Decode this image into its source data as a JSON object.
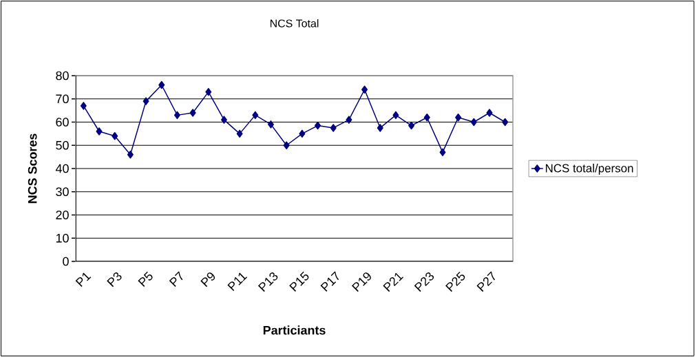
{
  "chart_data": {
    "type": "line",
    "title": "NCS Total",
    "xlabel": "Particiants",
    "ylabel": "NCS Scores",
    "categories": [
      "P1",
      null,
      "P3",
      null,
      "P5",
      null,
      "P7",
      null,
      "P9",
      null,
      "P11",
      null,
      "P13",
      null,
      "P15",
      null,
      "P17",
      null,
      "P19",
      null,
      "P21",
      null,
      "P23",
      null,
      "P25",
      null,
      "P27",
      null
    ],
    "series": [
      {
        "name": "NCS total/person",
        "color": "#000080",
        "values": [
          67,
          56,
          54,
          46,
          69,
          76,
          63,
          64,
          73,
          61,
          55,
          63,
          59,
          50,
          55,
          58.5,
          57.5,
          61,
          74,
          57.5,
          63,
          58.5,
          62,
          47,
          62,
          60,
          64,
          60
        ]
      }
    ],
    "ylim": [
      0,
      80
    ],
    "yticks": [
      0,
      10,
      20,
      30,
      40,
      50,
      60,
      70,
      80
    ],
    "grid": "y",
    "legend": "right",
    "marker": "diamond",
    "line_style": "solid"
  }
}
